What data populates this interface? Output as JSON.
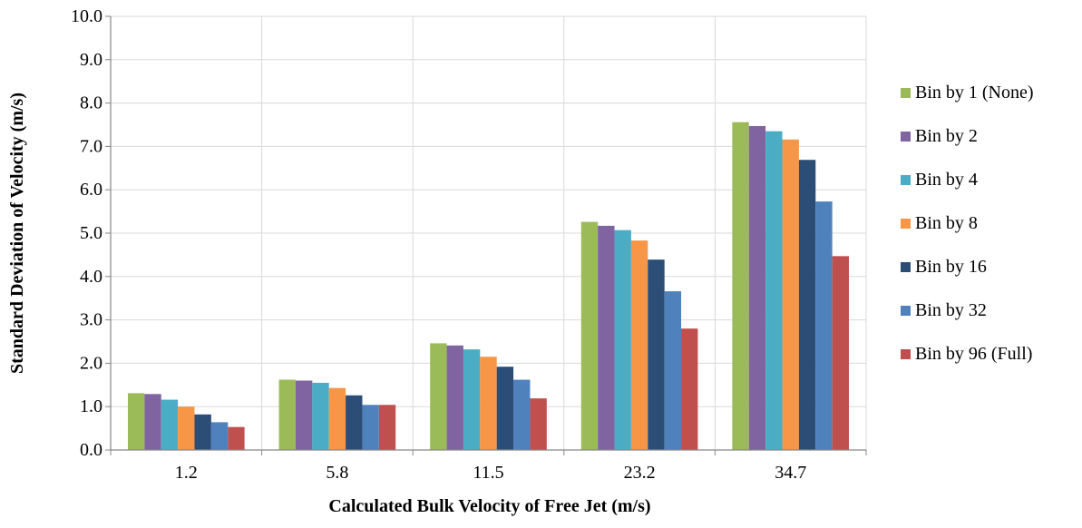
{
  "chart_data": {
    "type": "bar",
    "title": "",
    "xlabel": "Calculated Bulk Velocity of Free Jet (m/s)",
    "ylabel": "Standard Deviation of Velocity (m/s)",
    "ylim": [
      0,
      10
    ],
    "yticks": [
      "0.0",
      "1.0",
      "2.0",
      "3.0",
      "4.0",
      "5.0",
      "6.0",
      "7.0",
      "8.0",
      "9.0",
      "10.0"
    ],
    "grid": true,
    "legend_position": "right",
    "categories": [
      "1.2",
      "5.8",
      "11.5",
      "23.2",
      "34.7"
    ],
    "series": [
      {
        "name": "Bin by 1 (None)",
        "color": "#9BBB59",
        "values": [
          1.31,
          1.62,
          2.46,
          5.26,
          7.56
        ]
      },
      {
        "name": "Bin by 2",
        "color": "#8064A2",
        "values": [
          1.29,
          1.6,
          2.41,
          5.17,
          7.47
        ]
      },
      {
        "name": "Bin by 4",
        "color": "#4BACC6",
        "values": [
          1.16,
          1.55,
          2.32,
          5.07,
          7.35
        ]
      },
      {
        "name": "Bin by 8",
        "color": "#F79646",
        "values": [
          1.0,
          1.43,
          2.15,
          4.83,
          7.16
        ]
      },
      {
        "name": "Bin by 16",
        "color": "#2C4D75",
        "values": [
          0.82,
          1.26,
          1.92,
          4.39,
          6.69
        ]
      },
      {
        "name": "Bin by 32",
        "color": "#4F81BD",
        "values": [
          0.64,
          1.04,
          1.62,
          3.66,
          5.73
        ]
      },
      {
        "name": "Bin by 96 (Full)",
        "color": "#C0504D",
        "values": [
          0.53,
          1.04,
          1.19,
          2.8,
          4.47
        ]
      }
    ]
  }
}
